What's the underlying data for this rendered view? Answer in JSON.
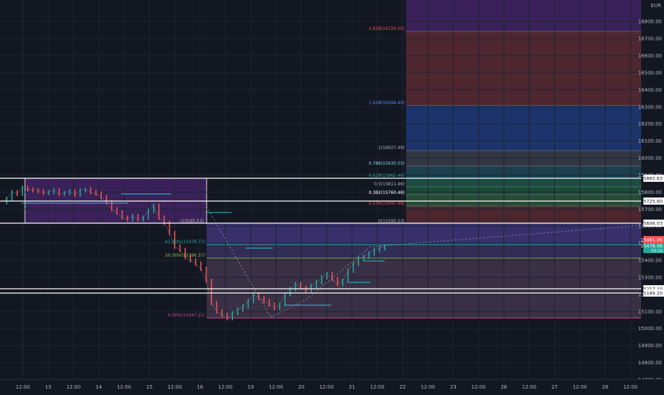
{
  "chart_data": {
    "type": "line",
    "currency": "EUR",
    "ylim": [
      14650,
      16850
    ],
    "y_ticks": [
      14700,
      14800,
      14900,
      15000,
      15100,
      15200,
      15300,
      15400,
      15500,
      15600,
      15700,
      15800,
      15900,
      16000,
      16100,
      16200,
      16300,
      16400,
      16500,
      16600,
      16700,
      16800
    ],
    "x_ticks": [
      "12:00",
      "13",
      "12:00",
      "14",
      "12:00",
      "15",
      "12:00",
      "16",
      "12:00",
      "19",
      "12:00",
      "20",
      "12:00",
      "21",
      "12:00",
      "22",
      "12:00",
      "23",
      "12:00",
      "26",
      "12:00",
      "27",
      "12:00",
      "28",
      "12:00"
    ],
    "price_series": {
      "name": "",
      "values": [
        15740,
        15760,
        15800,
        15790,
        15825,
        15815,
        15810,
        15805,
        15795,
        15800,
        15810,
        15790,
        15795,
        15805,
        15785,
        15810,
        15815,
        15800,
        15790,
        15770,
        15740,
        15700,
        15680,
        15650,
        15640,
        15660,
        15640,
        15650,
        15690,
        15720,
        15650,
        15620,
        15560,
        15480,
        15460,
        15420,
        15400,
        15380,
        15350,
        15280,
        15150,
        15100,
        15080,
        15060,
        15090,
        15110,
        15130,
        15160,
        15200,
        15180,
        15160,
        15140,
        15120,
        15140,
        15200,
        15230,
        15260,
        15240,
        15220,
        15250,
        15270,
        15300,
        15320,
        15290,
        15260,
        15280,
        15340,
        15380,
        15410,
        15420,
        15440,
        15460,
        15470,
        15481
      ]
    },
    "price_levels": [
      "15865.63",
      "15725.60",
      "15606.03",
      "15217.10",
      "15189.20"
    ],
    "last_price": "15481.06",
    "current_price": "15478.06",
    "countdown": "03:24",
    "fib_ext_labels": [
      "2.618(16726.05)",
      "1.618(16294.49)",
      "1(16027.49)",
      "0.786(15935.03)",
      "0.618(15862.46)",
      "0.5(15811.46)",
      "0.382(15760.48)",
      "0.236(15697.48)",
      "0(15595.53)"
    ],
    "fib_ret_labels": [
      "(15595.53)",
      "61.80%(15478.77)",
      "50.00%(15396.37)",
      "0.00%(15047.21)"
    ],
    "colors": {
      "background": "#131722",
      "up": "#26a69a",
      "down": "#ef5350",
      "purple_zone": "#4a2a6a",
      "red_zone": "#5a2a32",
      "blue_zone": "#1e3a78",
      "teal_level": "#26a69a"
    }
  }
}
